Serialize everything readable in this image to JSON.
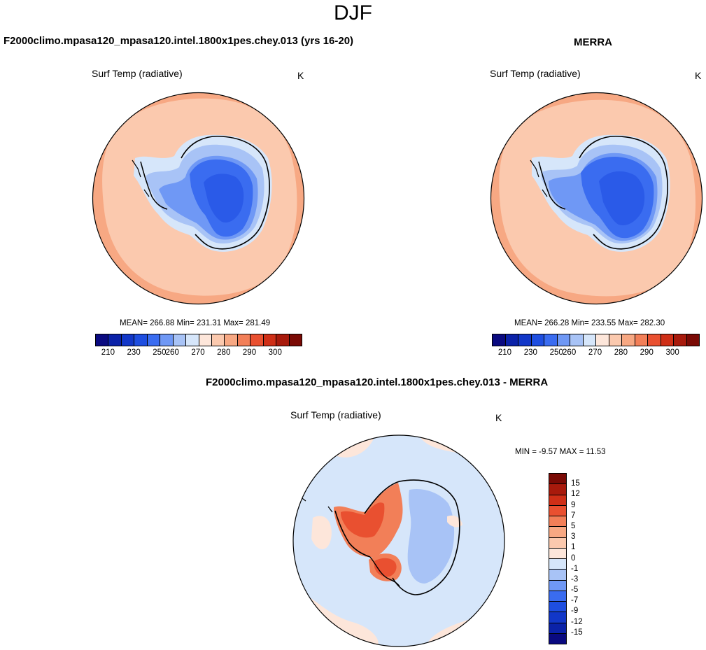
{
  "season": "DJF",
  "panels": [
    {
      "title": "F2000climo.mpasa120_mpasa120.intel.1800x1pes.chey.013 (yrs 16-20)",
      "variable": "Surf Temp (radiative)",
      "units": "K",
      "stats": "MEAN= 266.88  Min= 231.31  Max= 281.49"
    },
    {
      "title": "MERRA",
      "variable": "Surf Temp (radiative)",
      "units": "K",
      "stats": "MEAN= 266.28  Min= 233.55  Max= 282.30"
    },
    {
      "title": "F2000climo.mpasa120_mpasa120.intel.1800x1pes.chey.013 - MERRA",
      "variable": "Surf Temp (radiative)",
      "units": "K",
      "stats": "MIN =  -9.57 MAX =  11.53"
    }
  ],
  "abs_colorbar": {
    "colors": [
      "#0a0a80",
      "#0b22a8",
      "#1237c8",
      "#1e4ee0",
      "#3a6cf0",
      "#6f98f5",
      "#a8c3f6",
      "#d6e6fa",
      "#fde6da",
      "#fbc9ae",
      "#f7a883",
      "#f27f58",
      "#e95030",
      "#cf2f17",
      "#a81a0c",
      "#7a0a05"
    ],
    "tick_labels": [
      "210",
      "230",
      "250",
      "260",
      "270",
      "280",
      "290",
      "300"
    ]
  },
  "diff_colorbar": {
    "colors": [
      "#7a0a05",
      "#a81a0c",
      "#cf2f17",
      "#e95030",
      "#f27f58",
      "#f7a883",
      "#fbc9ae",
      "#fde6da",
      "#d6e6fa",
      "#a8c3f6",
      "#6f98f5",
      "#3a6cf0",
      "#1e4ee0",
      "#1237c8",
      "#0b22a8",
      "#0a0a80"
    ],
    "tick_labels": [
      "15",
      "12",
      "9",
      "7",
      "5",
      "3",
      "1",
      "0",
      "-1",
      "-3",
      "-5",
      "-7",
      "-9",
      "-12",
      "-15"
    ]
  },
  "map_colors": {
    "ocean_warm": "#f7a883",
    "ocean_mid": "#fbc9ae",
    "ice_edge": "#d6e6fa",
    "ice_light": "#a8c3f6",
    "ice_mid": "#6f98f5",
    "ice_core": "#3a6cf0",
    "ice_deep": "#2a5ae8",
    "diff_neg": "#d6e6fa",
    "diff_pos_light": "#fde6da",
    "diff_pos": "#f27f58",
    "diff_pos_strong": "#e95030",
    "diff_neg_strong": "#a8c3f6"
  }
}
